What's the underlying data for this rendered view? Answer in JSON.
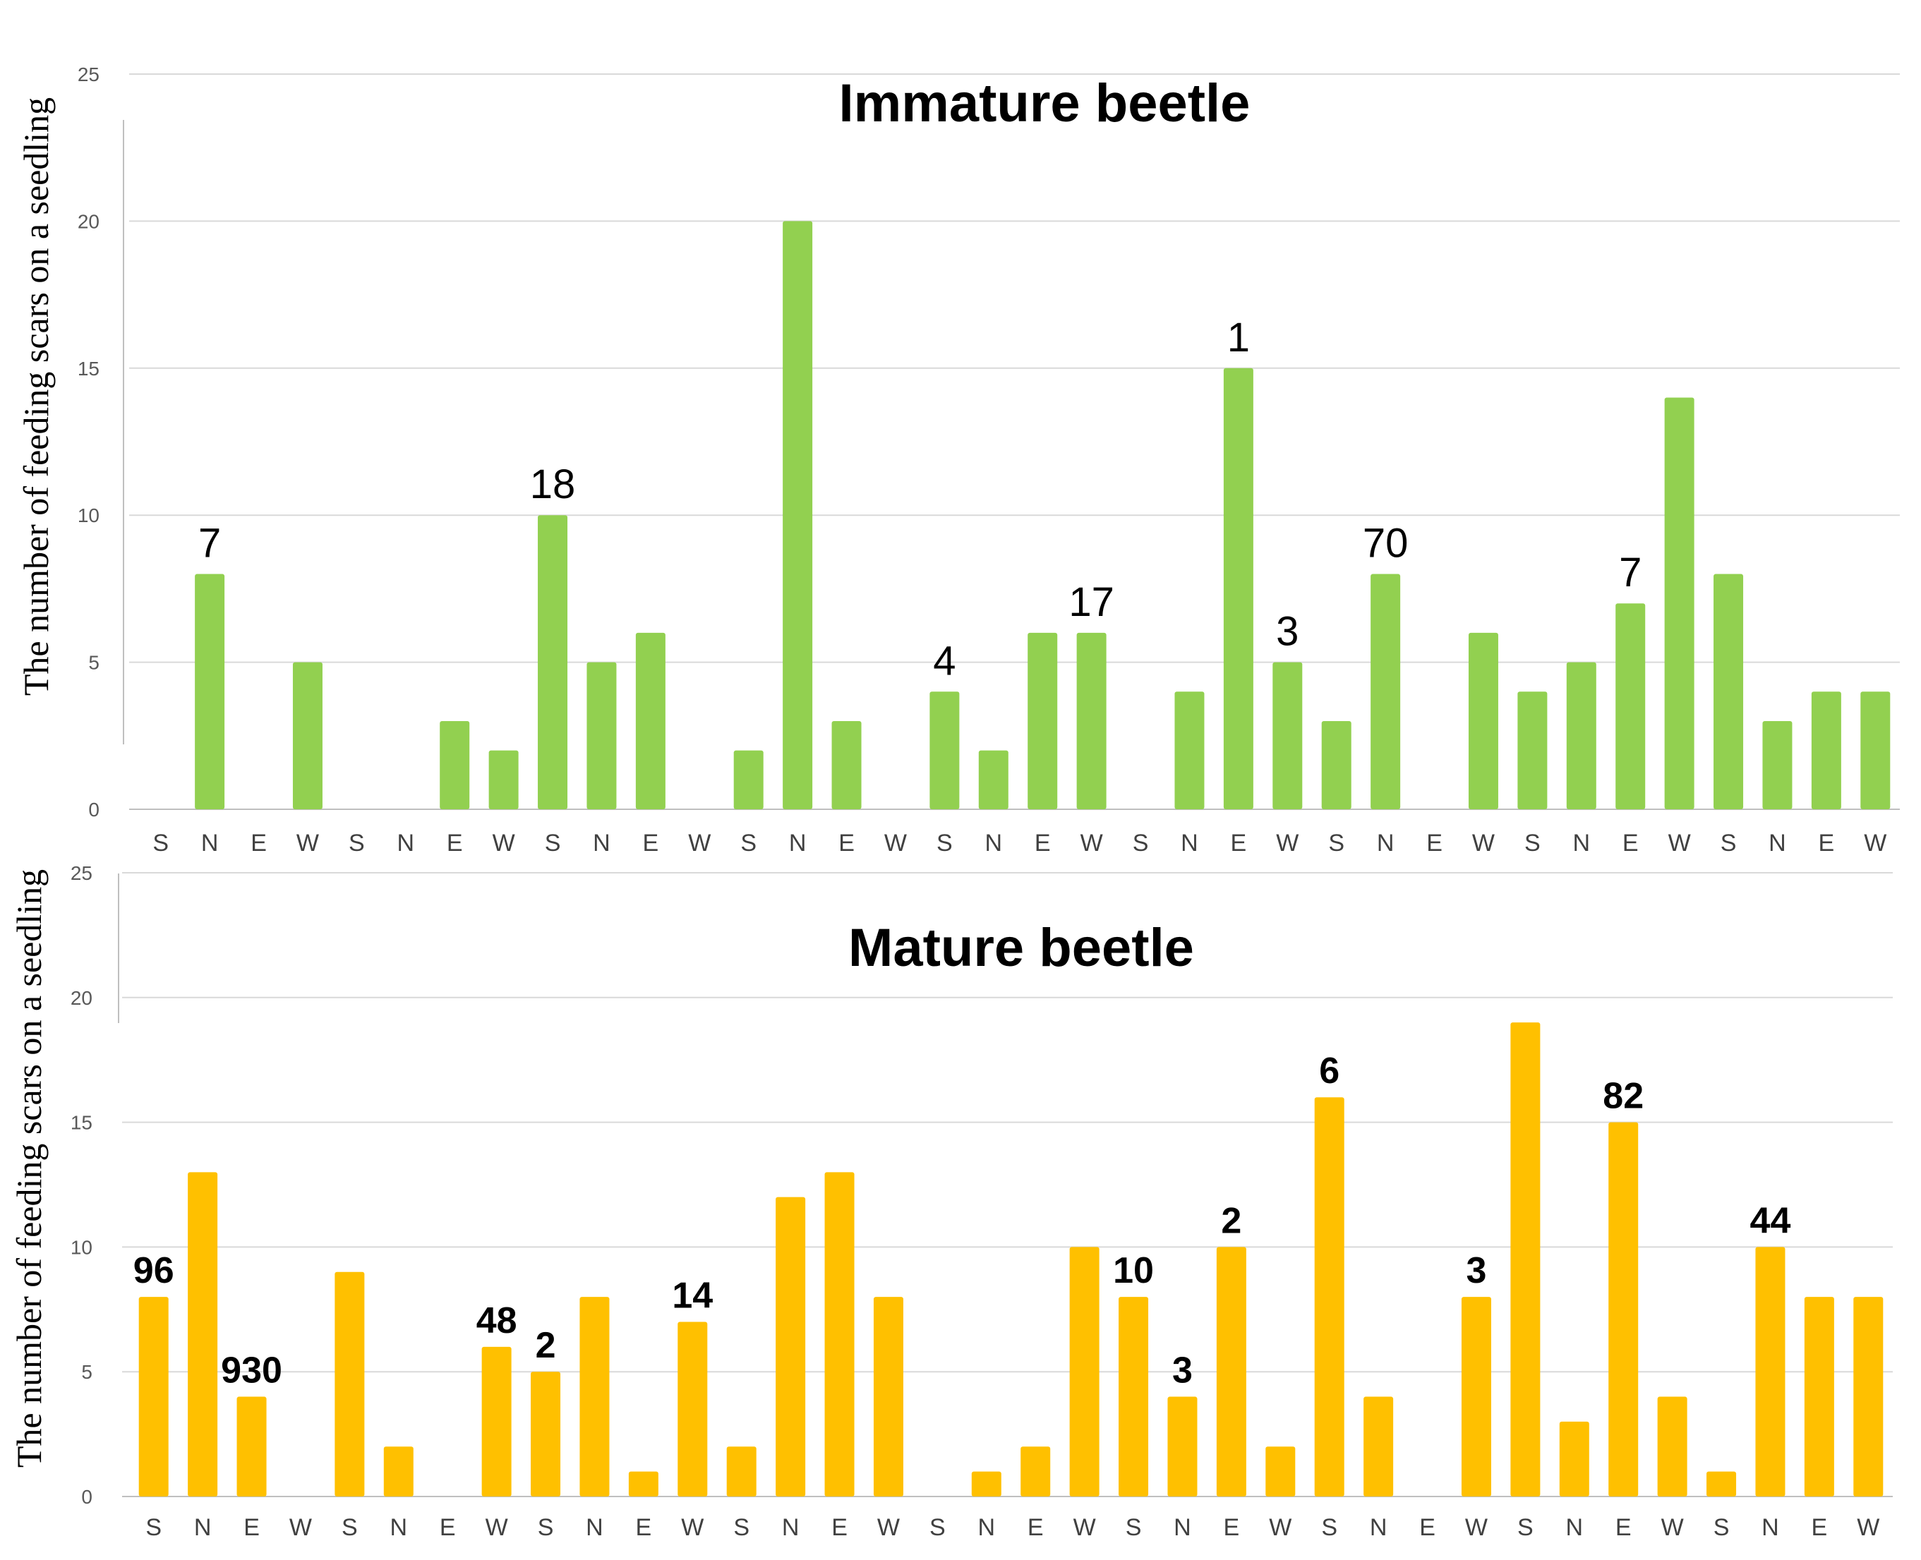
{
  "chart_data": [
    {
      "type": "bar",
      "title": "Immature beetle",
      "ylabel": "The number of feeding scars on a seedling",
      "xlabel": "",
      "ylim": [
        0,
        25
      ],
      "yticks": [
        "0",
        "5",
        "10",
        "15",
        "20",
        "25"
      ],
      "color": "#92d050",
      "categories": [
        "S",
        "N",
        "E",
        "W",
        "S",
        "N",
        "E",
        "W",
        "S",
        "N",
        "E",
        "W",
        "S",
        "N",
        "E",
        "W",
        "S",
        "N",
        "E",
        "W",
        "S",
        "N",
        "E",
        "W",
        "S",
        "N",
        "E",
        "W",
        "S",
        "N",
        "E",
        "W",
        "S",
        "N",
        "E",
        "W"
      ],
      "values": [
        0,
        8,
        0,
        5,
        0,
        0,
        3,
        2,
        10,
        5,
        6,
        0,
        2,
        20,
        3,
        0,
        4,
        2,
        6,
        6,
        0,
        4,
        15,
        5,
        3,
        8,
        0,
        6,
        4,
        5,
        7,
        14,
        8,
        3,
        4,
        4
      ],
      "annotations": [
        {
          "index": 1,
          "text": "7"
        },
        {
          "index": 8,
          "text": "18"
        },
        {
          "index": 16,
          "text": "4"
        },
        {
          "index": 19,
          "text": "17"
        },
        {
          "index": 22,
          "text": "1"
        },
        {
          "index": 23,
          "text": "3"
        },
        {
          "index": 25,
          "text": "70"
        },
        {
          "index": 30,
          "text": "7"
        }
      ]
    },
    {
      "type": "bar",
      "title": "Mature beetle",
      "ylabel": "The number of feeding scars on a seedling",
      "xlabel": "",
      "ylim": [
        0,
        25
      ],
      "yticks": [
        "0",
        "5",
        "10",
        "15",
        "20",
        "25"
      ],
      "color": "#ffc000",
      "categories": [
        "S",
        "N",
        "E",
        "W",
        "S",
        "N",
        "E",
        "W",
        "S",
        "N",
        "E",
        "W",
        "S",
        "N",
        "E",
        "W",
        "S",
        "N",
        "E",
        "W",
        "S",
        "N",
        "E",
        "W",
        "S",
        "N",
        "E",
        "W",
        "S",
        "N",
        "E",
        "W",
        "S",
        "N",
        "E",
        "W"
      ],
      "values": [
        8,
        13,
        4,
        0,
        9,
        2,
        0,
        6,
        5,
        8,
        1,
        7,
        2,
        12,
        13,
        8,
        0,
        1,
        2,
        10,
        8,
        4,
        10,
        2,
        16,
        4,
        0,
        8,
        19,
        3,
        15,
        4,
        1,
        10,
        8,
        8
      ],
      "annotations": [
        {
          "index": 0,
          "text": "96"
        },
        {
          "index": 2,
          "text": "930"
        },
        {
          "index": 7,
          "text": "48"
        },
        {
          "index": 8,
          "text": "2"
        },
        {
          "index": 11,
          "text": "14"
        },
        {
          "index": 20,
          "text": "10"
        },
        {
          "index": 21,
          "text": "3"
        },
        {
          "index": 22,
          "text": "2"
        },
        {
          "index": 24,
          "text": "6"
        },
        {
          "index": 27,
          "text": "3"
        },
        {
          "index": 30,
          "text": "82"
        },
        {
          "index": 33,
          "text": "44"
        }
      ]
    }
  ]
}
